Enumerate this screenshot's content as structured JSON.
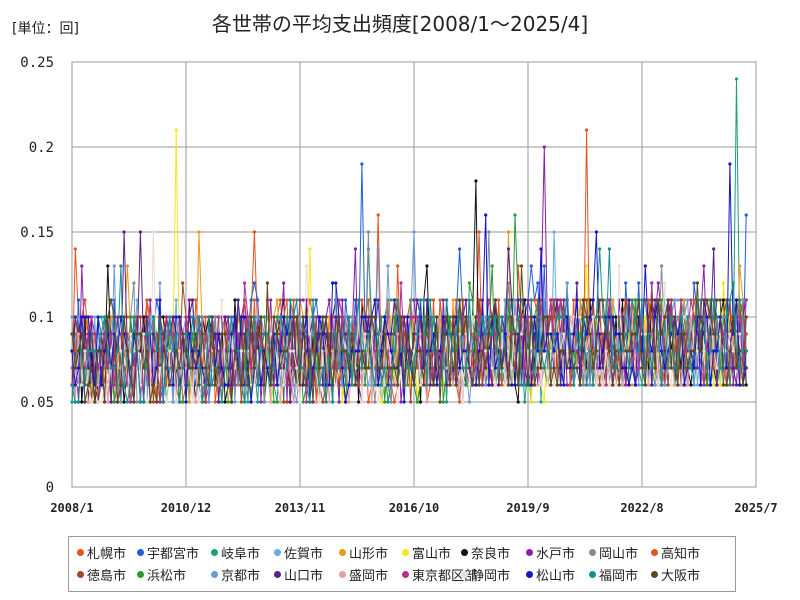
{
  "chart_data": {
    "type": "line",
    "title": "各世帯の平均支出頻度[2008/1～2025/4]",
    "unit_label": "[単位：回]",
    "xlabel": "",
    "ylabel": "",
    "x_range": [
      "2008/1",
      "2025/7"
    ],
    "x_ticks": [
      "2008/1",
      "2010/12",
      "2013/11",
      "2016/10",
      "2019/9",
      "2022/8",
      "2025/7"
    ],
    "ylim": [
      0,
      0.25
    ],
    "y_ticks": [
      0,
      0.05,
      0.1,
      0.15,
      0.2,
      0.25
    ],
    "grid": true,
    "legend_position": "bottom",
    "series": [
      {
        "name": "札幌市",
        "color": "#e8501e",
        "seed": 11,
        "level": 0.075,
        "noise": 0.028,
        "peaks": []
      },
      {
        "name": "宇都宮市",
        "color": "#1f5fd6",
        "seed": 23,
        "level": 0.078,
        "noise": 0.03,
        "peaks": [
          [
            0.43,
            0.19
          ]
        ]
      },
      {
        "name": "岐阜市",
        "color": "#17a07a",
        "seed": 37,
        "level": 0.075,
        "noise": 0.03,
        "peaks": [
          [
            0.985,
            0.24
          ]
        ]
      },
      {
        "name": "佐賀市",
        "color": "#5fb0e6",
        "seed": 41,
        "level": 0.072,
        "noise": 0.026,
        "peaks": []
      },
      {
        "name": "山形市",
        "color": "#e89b1a",
        "seed": 53,
        "level": 0.075,
        "noise": 0.028,
        "peaks": []
      },
      {
        "name": "富山市",
        "color": "#f7e61a",
        "seed": 67,
        "level": 0.068,
        "noise": 0.024,
        "peaks": [
          [
            0.155,
            0.21
          ]
        ]
      },
      {
        "name": "奈良市",
        "color": "#111111",
        "seed": 71,
        "level": 0.075,
        "noise": 0.03,
        "peaks": [
          [
            0.6,
            0.18
          ]
        ]
      },
      {
        "name": "水戸市",
        "color": "#8a1fa8",
        "seed": 83,
        "level": 0.077,
        "noise": 0.03,
        "peaks": [
          [
            0.7,
            0.2
          ]
        ]
      },
      {
        "name": "岡山市",
        "color": "#7f8c9a",
        "seed": 97,
        "level": 0.072,
        "noise": 0.026,
        "peaks": []
      },
      {
        "name": "高知市",
        "color": "#e0561e",
        "seed": 101,
        "level": 0.077,
        "noise": 0.03,
        "peaks": [
          [
            0.765,
            0.21
          ]
        ]
      },
      {
        "name": "徳島市",
        "color": "#a8452e",
        "seed": 113,
        "level": 0.074,
        "noise": 0.027,
        "peaks": []
      },
      {
        "name": "浜松市",
        "color": "#2e9a2e",
        "seed": 127,
        "level": 0.074,
        "noise": 0.028,
        "peaks": []
      },
      {
        "name": "京都市",
        "color": "#6a98d8",
        "seed": 131,
        "level": 0.074,
        "noise": 0.027,
        "peaks": []
      },
      {
        "name": "山口市",
        "color": "#5a1f8e",
        "seed": 149,
        "level": 0.076,
        "noise": 0.029,
        "peaks": []
      },
      {
        "name": "盛岡市",
        "color": "#e6a0a0",
        "seed": 157,
        "level": 0.07,
        "noise": 0.024,
        "peaks": []
      },
      {
        "name": "東京都区部",
        "color": "#b52e8c",
        "seed": 163,
        "level": 0.074,
        "noise": 0.027,
        "peaks": []
      },
      {
        "name": "静岡市",
        "color": "#efdcd0",
        "seed": 173,
        "level": 0.07,
        "noise": 0.024,
        "peaks": []
      },
      {
        "name": "松山市",
        "color": "#1414c8",
        "seed": 181,
        "level": 0.075,
        "noise": 0.028,
        "peaks": [
          [
            0.975,
            0.19
          ]
        ]
      },
      {
        "name": "福岡市",
        "color": "#149090",
        "seed": 191,
        "level": 0.076,
        "noise": 0.029,
        "peaks": []
      },
      {
        "name": "大阪市",
        "color": "#5a4a1e",
        "seed": 197,
        "level": 0.074,
        "noise": 0.027,
        "peaks": []
      }
    ]
  }
}
